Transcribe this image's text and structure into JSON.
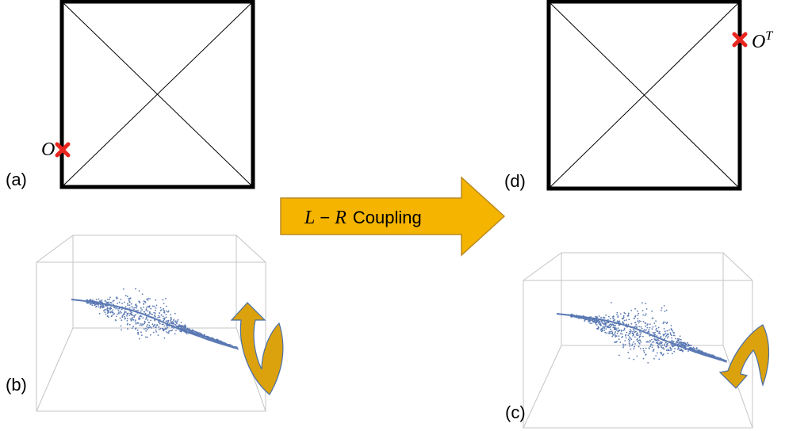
{
  "panels": {
    "a": {
      "label": "(a)",
      "marker_label": "O"
    },
    "d": {
      "label": "(d)",
      "marker_label": "O",
      "marker_sup": "T"
    },
    "b": {
      "label": "(b)"
    },
    "c": {
      "label": "(c)"
    }
  },
  "coupling_arrow": {
    "var_left": "L",
    "operator": "−",
    "var_right": "R",
    "text": "Coupling"
  },
  "colors": {
    "square_stroke": "#000000",
    "marker": "#e8261f",
    "arrow_fill": "#f5b400",
    "arrow_stroke": "#b98a22",
    "curl_fill": "#dba20e",
    "curl_stroke": "#4a6fa5",
    "points": "#5a79b3",
    "box_edge": "#c4c4c4"
  },
  "icons": {
    "marker": "red-x-icon",
    "rotation_b": "curved-arrow-up-icon",
    "rotation_c": "curved-arrow-down-icon"
  }
}
